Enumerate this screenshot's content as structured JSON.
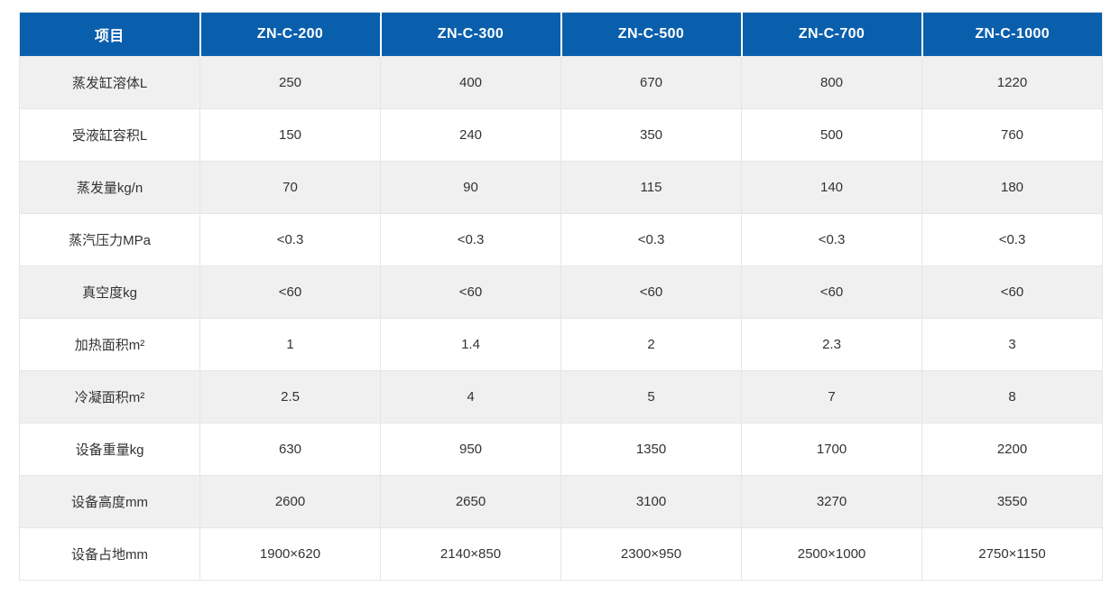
{
  "chart_data": {
    "type": "table",
    "columns": [
      "项目",
      "ZN-C-200",
      "ZN-C-300",
      "ZN-C-500",
      "ZN-C-700",
      "ZN-C-1000"
    ],
    "rows": [
      [
        "蒸发缸溶体L",
        "250",
        "400",
        "670",
        "800",
        "1220"
      ],
      [
        "受液缸容积L",
        "150",
        "240",
        "350",
        "500",
        "760"
      ],
      [
        "蒸发量kg/n",
        "70",
        "90",
        "115",
        "140",
        "180"
      ],
      [
        "蒸汽压力MPa",
        "<0.3",
        "<0.3",
        "<0.3",
        "<0.3",
        "<0.3"
      ],
      [
        "真空度kg",
        "<60",
        "<60",
        "<60",
        "<60",
        "<60"
      ],
      [
        "加热面积m²",
        "1",
        "1.4",
        "2",
        "2.3",
        "3"
      ],
      [
        "冷凝面积m²",
        "2.5",
        "4",
        "5",
        "7",
        "8"
      ],
      [
        "设备重量kg",
        "630",
        "950",
        "1350",
        "1700",
        "2200"
      ],
      [
        "设备高度mm",
        "2600",
        "2650",
        "3100",
        "3270",
        "3550"
      ],
      [
        "设备占地mm",
        "1900×620",
        "2140×850",
        "2300×950",
        "2500×1000",
        "2750×1150"
      ]
    ],
    "layout_hints": {
      "striped_rows": "odd rows shaded",
      "header_row": "blue background, white bold text",
      "grid": true
    }
  },
  "theme": {
    "header_bg": "#0a5fad",
    "header_text": "#ffffff",
    "stripe_bg": "#f0f0f0",
    "row_bg": "#ffffff",
    "border": "#e6e6e6",
    "text": "#333333"
  }
}
